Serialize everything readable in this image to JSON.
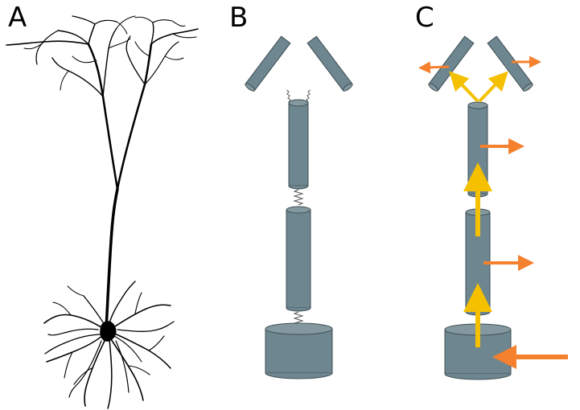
{
  "panels": [
    {
      "id": "A",
      "label": "A"
    },
    {
      "id": "B",
      "label": "B"
    },
    {
      "id": "C",
      "label": "C"
    }
  ],
  "colors": {
    "compartment_fill": "#6e868f",
    "compartment_top": "#84999f",
    "compartment_stroke": "#3f4f55",
    "spring": "#555555",
    "axial_arrow": "#f5c000",
    "radial_arrow": "#f5802e",
    "neuron": "#000000"
  }
}
